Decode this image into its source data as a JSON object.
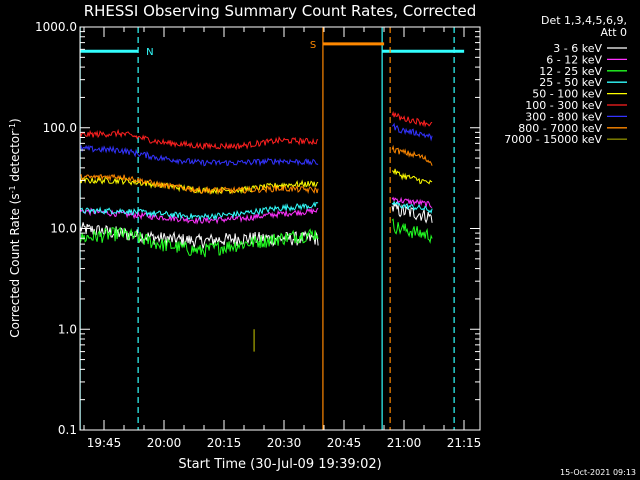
{
  "chart_data": {
    "type": "line",
    "title": "RHESSI Observing Summary Count Rates, Corrected",
    "xlabel": "Start Time (30-Jul-09 19:39:02)",
    "ylabel_text": "Corrected Count Rate (s",
    "ylabel_sup": "-1",
    "ylabel_tail": " detector",
    "ylabel_sup2": "-1",
    "ylabel_close": ")",
    "yscale": "log",
    "ylim": [
      0.1,
      1000
    ],
    "xlim_minutes": [
      -0.03,
      99.97
    ],
    "y_ticks": [
      {
        "label": "1000.0",
        "value": 1000
      },
      {
        "label": "100.0",
        "value": 100
      },
      {
        "label": "10.0",
        "value": 10
      },
      {
        "label": "1.0",
        "value": 1
      },
      {
        "label": "0.1",
        "value": 0.1
      }
    ],
    "x_ticks": [
      {
        "label": "19:45",
        "minute": 5.97
      },
      {
        "label": "20:00",
        "minute": 20.97
      },
      {
        "label": "20:15",
        "minute": 35.97
      },
      {
        "label": "20:30",
        "minute": 50.97
      },
      {
        "label": "20:45",
        "minute": 65.97
      },
      {
        "label": "21:00",
        "minute": 80.97
      },
      {
        "label": "21:15",
        "minute": 95.97
      }
    ],
    "legend_header": [
      "Det 1,3,4,5,6,9,",
      "Att 0"
    ],
    "legend_position": "right",
    "series": [
      {
        "name": "3 - 6 keV",
        "color": "#ffffff",
        "x": [
          0,
          10,
          20,
          30,
          40,
          50,
          59.5
        ],
        "y": [
          10,
          9,
          8,
          7.5,
          8,
          8,
          8
        ],
        "x2": [
          78,
          80,
          85,
          88
        ],
        "y2": [
          16,
          15,
          14,
          13
        ]
      },
      {
        "name": "6 - 12 keV",
        "color": "#ff33ff",
        "x": [
          0,
          10,
          20,
          30,
          40,
          50,
          59.5
        ],
        "y": [
          15,
          14,
          13,
          12,
          12.5,
          14,
          15
        ],
        "x2": [
          78,
          80,
          85,
          88
        ],
        "y2": [
          20,
          19,
          18,
          17
        ]
      },
      {
        "name": "12 - 25 keV",
        "color": "#22ff22",
        "x": [
          0,
          10,
          20,
          30,
          40,
          50,
          59.5
        ],
        "y": [
          8,
          9,
          7,
          6,
          7,
          8,
          9
        ],
        "x2": [
          78,
          80,
          85,
          88
        ],
        "y2": [
          11,
          10,
          9,
          8.5
        ]
      },
      {
        "name": "25 - 50 keV",
        "color": "#33ffff",
        "x": [
          0,
          10,
          20,
          30,
          40,
          50,
          59.5
        ],
        "y": [
          15,
          15,
          14,
          13,
          14,
          16,
          17
        ],
        "x2": [
          78,
          80,
          85,
          88
        ],
        "y2": [
          18,
          17,
          16,
          15
        ]
      },
      {
        "name": "50 - 100 keV",
        "color": "#ffff00",
        "x": [
          0,
          10,
          20,
          30,
          40,
          50,
          59.5
        ],
        "y": [
          30,
          30,
          27,
          24,
          24,
          27,
          28
        ],
        "x2": [
          78,
          80,
          85,
          88
        ],
        "y2": [
          38,
          34,
          30,
          28
        ]
      },
      {
        "name": "100 - 300 keV",
        "color": "#ff2020",
        "x": [
          0,
          10,
          20,
          30,
          40,
          50,
          59.5
        ],
        "y": [
          85,
          88,
          72,
          66,
          66,
          75,
          73
        ],
        "x2": [
          78,
          80,
          85,
          88
        ],
        "y2": [
          140,
          125,
          115,
          108
        ]
      },
      {
        "name": "300 - 800 keV",
        "color": "#3333ff",
        "x": [
          0,
          10,
          20,
          30,
          40,
          50,
          59.5
        ],
        "y": [
          62,
          60,
          50,
          45,
          45,
          47,
          45
        ],
        "x2": [
          78,
          80,
          85,
          88
        ],
        "y2": [
          105,
          95,
          88,
          80
        ]
      },
      {
        "name": "800 - 7000 keV",
        "color": "#ff8800",
        "x": [
          0,
          10,
          20,
          30,
          40,
          50,
          59.5
        ],
        "y": [
          32,
          33,
          27,
          24,
          24,
          25,
          24
        ],
        "x2": [
          78,
          80,
          85,
          88
        ],
        "y2": [
          62,
          58,
          52,
          45
        ]
      },
      {
        "name": "7000 - 15000 keV",
        "color": "#888800",
        "x": [
          43.5,
          43.5
        ],
        "y": [
          0.6,
          1.0
        ],
        "x2": [],
        "y2": []
      }
    ],
    "annotations": [
      {
        "text": "N",
        "color": "#33ffff",
        "minute": 14.5,
        "level": 575
      },
      {
        "text": "S",
        "color": "#ff8800",
        "minute": 60.7,
        "level": 680
      }
    ],
    "markers": {
      "night": {
        "color": "#33ffff",
        "solid": [
          0,
          75.5
        ],
        "dashed": [
          14.5,
          93.5
        ],
        "flag": [
          [
            0,
            14.5
          ],
          [
            75.5,
            96
          ]
        ]
      },
      "saa": {
        "color": "#ff8800",
        "solid": [
          60.7
        ],
        "dashed": [
          77.5
        ],
        "flag": [
          [
            60.7,
            76.0
          ]
        ]
      }
    },
    "footer_date": "15-Oct-2021 09:13"
  }
}
